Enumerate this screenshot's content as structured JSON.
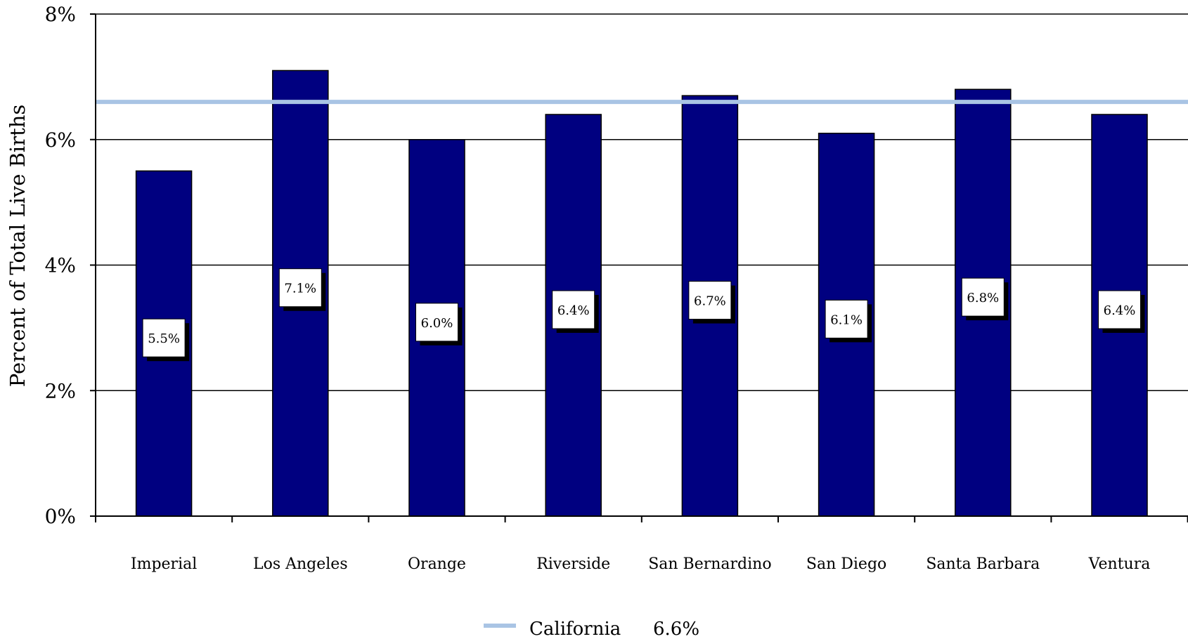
{
  "chart_data": {
    "type": "bar",
    "title": "",
    "xlabel": "",
    "ylabel": "Percent of Total Live Births",
    "ylim": [
      0,
      8
    ],
    "yticks": [
      "0%",
      "2%",
      "4%",
      "6%",
      "8%"
    ],
    "grid": true,
    "categories": [
      "Imperial",
      "Los Angeles",
      "Orange",
      "Riverside",
      "San Bernardino",
      "San Diego",
      "Santa Barbara",
      "Ventura"
    ],
    "values": [
      5.5,
      7.1,
      6.0,
      6.4,
      6.7,
      6.1,
      6.8,
      6.4
    ],
    "data_labels": [
      "5.5%",
      "7.1%",
      "6.0%",
      "6.4%",
      "6.7%",
      "6.1%",
      "6.8%",
      "6.4%"
    ],
    "bar_color": "#000080",
    "reference_line": {
      "name": "California",
      "value": 6.6,
      "label": "6.6%",
      "color": "#a9c4e4"
    },
    "legend_position": "bottom-center"
  }
}
